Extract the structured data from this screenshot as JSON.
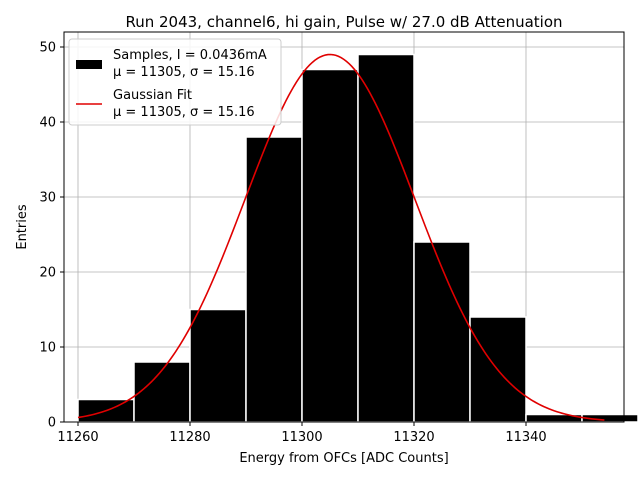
{
  "chart_data": {
    "type": "bar",
    "title": "Run 2043, channel6, hi gain, Pulse w/ 27.0 dB Attenuation",
    "xlabel": "Energy from OFCs [ADC Counts]",
    "ylabel": "Entries",
    "xlim": [
      11257.5,
      11357.5
    ],
    "ylim": [
      0,
      52
    ],
    "xticks": [
      11260,
      11280,
      11300,
      11320,
      11340
    ],
    "xtick_labels": [
      "11260",
      "11280",
      "11300",
      "11320",
      "11340"
    ],
    "yticks": [
      0,
      10,
      20,
      30,
      40,
      50
    ],
    "ytick_labels": [
      "0",
      "10",
      "20",
      "30",
      "40",
      "50"
    ],
    "grid": true,
    "legend_position": "upper-left",
    "bins": [
      {
        "left": 11260.0,
        "right": 11270.0,
        "count": 3
      },
      {
        "left": 11270.0,
        "right": 11280.0,
        "count": 8
      },
      {
        "left": 11280.0,
        "right": 11290.0,
        "count": 15
      },
      {
        "left": 11290.0,
        "right": 11300.0,
        "count": 38
      },
      {
        "left": 11300.0,
        "right": 11310.0,
        "count": 47
      },
      {
        "left": 11310.0,
        "right": 11320.0,
        "count": 49
      },
      {
        "left": 11320.0,
        "right": 11330.0,
        "count": 24
      },
      {
        "left": 11330.0,
        "right": 11340.0,
        "count": 14
      },
      {
        "left": 11340.0,
        "right": 11350.0,
        "count": 1
      },
      {
        "left": 11350.0,
        "right": 11360.0,
        "count": 1
      }
    ],
    "bar_color": "#000000",
    "bar_edge_color": "#ffffff",
    "fit": {
      "name": "Gaussian Fit",
      "type": "gaussian",
      "mu": 11305,
      "sigma": 15.16,
      "amplitude": 49,
      "x_range": [
        11260,
        11354
      ],
      "color": "#e00000"
    },
    "legend": [
      {
        "kind": "patch",
        "line1": "Samples, I = 0.0436mA",
        "line2": "μ = 11305, σ = 15.16"
      },
      {
        "kind": "line",
        "line1": "Gaussian Fit",
        "line2": "μ = 11305, σ = 15.16"
      }
    ]
  }
}
